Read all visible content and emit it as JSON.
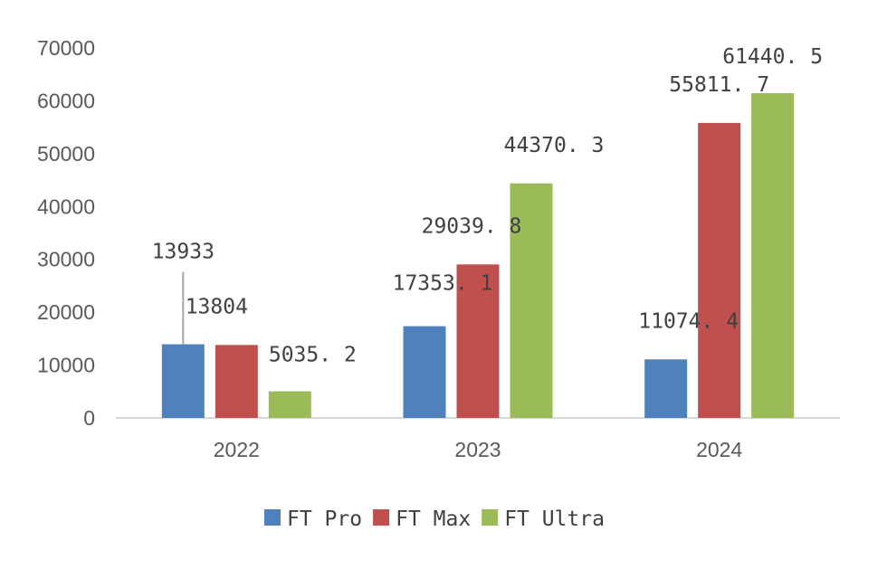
{
  "chart_data": {
    "type": "bar",
    "title": "",
    "xlabel": "",
    "ylabel": "",
    "categories": [
      "2022",
      "2023",
      "2024"
    ],
    "ylim": [
      0,
      70000
    ],
    "yticks": [
      0,
      10000,
      20000,
      30000,
      40000,
      50000,
      60000,
      70000
    ],
    "ytick_labels": [
      "0",
      "10000",
      "20000",
      "30000",
      "40000",
      "50000",
      "60000",
      "70000"
    ],
    "grid": false,
    "legend_position": "bottom",
    "series": [
      {
        "name": "FT Pro",
        "color": "#4f81bd",
        "values": [
          13933,
          17353.1,
          11074.4
        ],
        "labels": [
          "13933",
          "17353. 1",
          "11074. 4"
        ]
      },
      {
        "name": "FT Max",
        "color": "#c0504d",
        "values": [
          13804,
          29039.8,
          55811.7
        ],
        "labels": [
          "13804",
          "29039. 8",
          "55811. 7"
        ]
      },
      {
        "name": "FT Ultra",
        "color": "#9bbb59",
        "values": [
          5035.2,
          44370.3,
          61440.5
        ],
        "labels": [
          "5035. 2",
          "44370. 3",
          "61440. 5"
        ]
      }
    ]
  }
}
